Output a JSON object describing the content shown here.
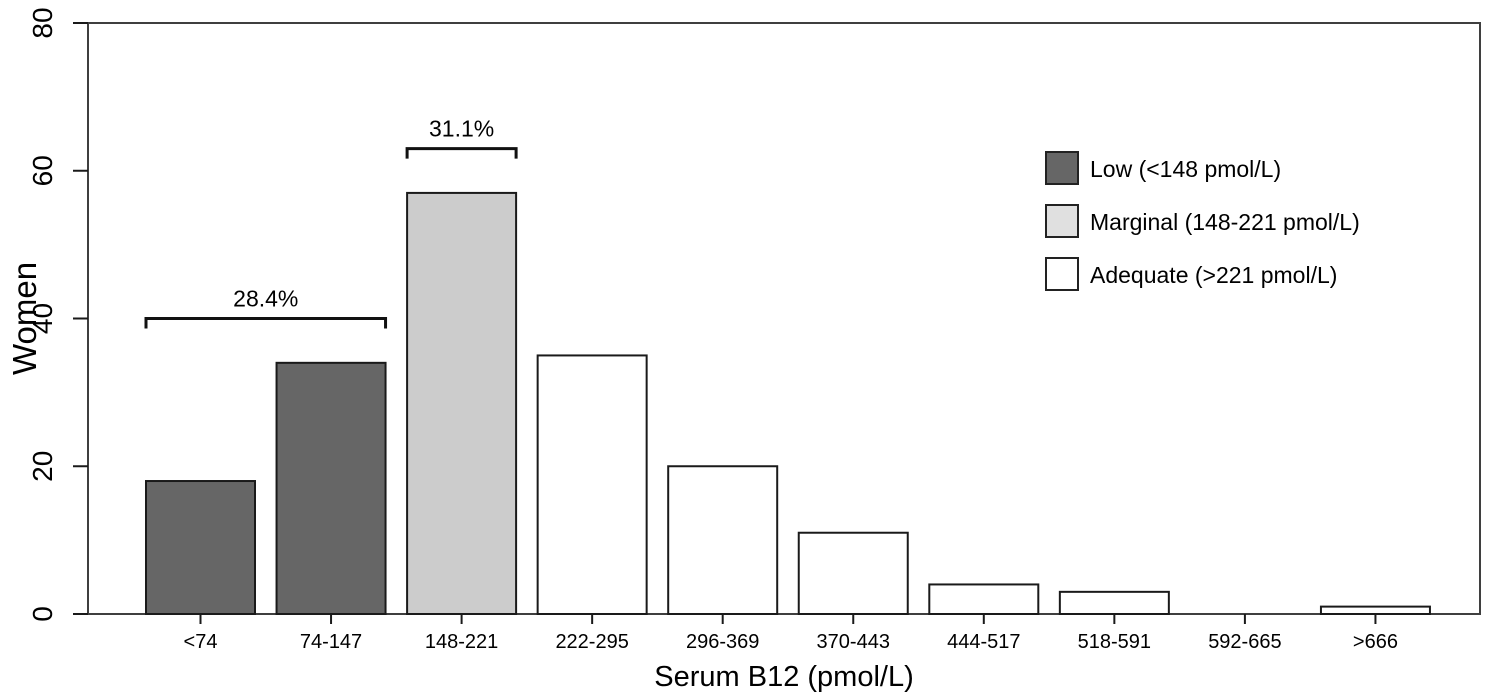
{
  "figure": {
    "background_color": "#ffffff",
    "axis_line_color": "#3f3f3f",
    "text_color": "#000000"
  },
  "chart_data": {
    "type": "bar",
    "title": "",
    "xlabel": "Serum B12 (pmol/L)",
    "ylabel": "Women",
    "ylim": [
      0,
      80
    ],
    "yticks": [
      0,
      20,
      40,
      60,
      80
    ],
    "grid": false,
    "categories": [
      "<74",
      "74-147",
      "148-221",
      "222-295",
      "296-369",
      "370-443",
      "444-517",
      "518-591",
      "592-665",
      ">666"
    ],
    "values": [
      18,
      34,
      57,
      35,
      20,
      11,
      4,
      3,
      0,
      1
    ],
    "bar_groups": [
      "low",
      "low",
      "marginal",
      "adequate",
      "adequate",
      "adequate",
      "adequate",
      "adequate",
      "adequate",
      "adequate"
    ],
    "group_colors": {
      "low": "#666666",
      "marginal": "#cccccc",
      "adequate": "#ffffff"
    },
    "bar_border_color": "#1a1a1a",
    "annotations": [
      {
        "label": "28.4%",
        "first_bar": 0,
        "last_bar": 1,
        "y_value": 40
      },
      {
        "label": "31.1%",
        "first_bar": 2,
        "last_bar": 2,
        "y_value": 63
      }
    ],
    "legend": {
      "position": "upper-right",
      "items": [
        {
          "label": "Low (<148 pmol/L)",
          "color": "#666666"
        },
        {
          "label": "Marginal (148-221 pmol/L)",
          "color": "#e0e0e0"
        },
        {
          "label": "Adequate (>221 pmol/L)",
          "color": "#ffffff"
        }
      ]
    }
  }
}
